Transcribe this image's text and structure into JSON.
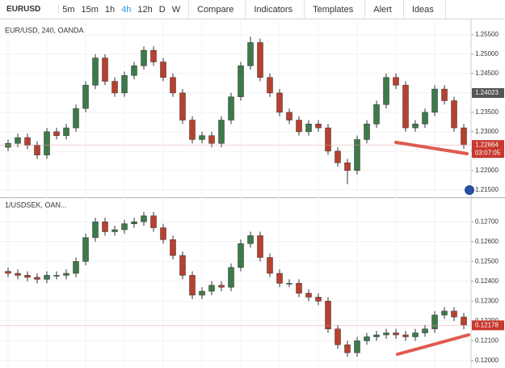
{
  "toolbar": {
    "symbol": "EURUSD",
    "intervals": [
      "5m",
      "15m",
      "1h",
      "4h",
      "12h",
      "D",
      "W"
    ],
    "active_interval": "4h",
    "buttons": [
      "Compare",
      "Indicators",
      "Templates",
      "Alert",
      "Ideas"
    ]
  },
  "chart_data": [
    {
      "type": "candlestick",
      "title": "EUR/USD, 240, OANDA",
      "up_color": "#3d7a4a",
      "down_color": "#b8402f",
      "grid": true,
      "ylim": [
        1.2133,
        1.2577
      ],
      "yticks": [
        {
          "value": 1.255,
          "label": "1.25500"
        },
        {
          "value": 1.25,
          "label": "1.25000"
        },
        {
          "value": 1.245,
          "label": "1.24500"
        },
        {
          "value": 1.24,
          "label": "1.24000"
        },
        {
          "value": 1.235,
          "label": "1.23500"
        },
        {
          "value": 1.23,
          "label": "1.23000"
        },
        {
          "value": 1.225,
          "label": "1.22500"
        },
        {
          "value": 1.22,
          "label": "1.22000"
        },
        {
          "value": 1.215,
          "label": "1.21500"
        }
      ],
      "open": [
        1.226,
        1.227,
        1.2285,
        1.2265,
        1.224,
        1.23,
        1.229,
        1.231,
        1.236,
        1.242,
        1.249,
        1.243,
        1.24,
        1.2445,
        1.247,
        1.251,
        1.248,
        1.244,
        1.24,
        1.233,
        1.228,
        1.229,
        1.227,
        1.233,
        1.239,
        1.247,
        1.253,
        1.244,
        1.24,
        1.235,
        1.233,
        1.23,
        1.232,
        1.231,
        1.225,
        1.222,
        1.22,
        1.228,
        1.232,
        1.237,
        1.244,
        1.242,
        1.231,
        1.232,
        1.235,
        1.241,
        1.238,
        1.231
      ],
      "high": [
        1.228,
        1.2295,
        1.2295,
        1.2275,
        1.231,
        1.231,
        1.232,
        1.237,
        1.243,
        1.25,
        1.25,
        1.244,
        1.2455,
        1.248,
        1.252,
        1.252,
        1.249,
        1.245,
        1.241,
        1.234,
        1.23,
        1.23,
        1.234,
        1.24,
        1.248,
        1.2545,
        1.254,
        1.245,
        1.241,
        1.236,
        1.234,
        1.233,
        1.233,
        1.232,
        1.226,
        1.223,
        1.229,
        1.233,
        1.238,
        1.245,
        1.245,
        1.243,
        1.233,
        1.236,
        1.242,
        1.242,
        1.239,
        1.232
      ],
      "low": [
        1.225,
        1.226,
        1.2255,
        1.223,
        1.223,
        1.228,
        1.228,
        1.23,
        1.235,
        1.241,
        1.242,
        1.239,
        1.239,
        1.2435,
        1.246,
        1.247,
        1.243,
        1.239,
        1.232,
        1.227,
        1.227,
        1.226,
        1.226,
        1.232,
        1.238,
        1.246,
        1.243,
        1.239,
        1.234,
        1.232,
        1.229,
        1.229,
        1.23,
        1.224,
        1.221,
        1.2165,
        1.219,
        1.227,
        1.231,
        1.236,
        1.241,
        1.23,
        1.23,
        1.231,
        1.234,
        1.237,
        1.23,
        1.2256
      ],
      "close": [
        1.227,
        1.2285,
        1.2265,
        1.224,
        1.23,
        1.229,
        1.231,
        1.236,
        1.242,
        1.249,
        1.243,
        1.24,
        1.2445,
        1.247,
        1.251,
        1.248,
        1.244,
        1.24,
        1.233,
        1.228,
        1.229,
        1.227,
        1.233,
        1.239,
        1.247,
        1.253,
        1.244,
        1.24,
        1.235,
        1.233,
        1.23,
        1.232,
        1.231,
        1.225,
        1.222,
        1.22,
        1.228,
        1.232,
        1.237,
        1.244,
        1.242,
        1.231,
        1.232,
        1.235,
        1.241,
        1.238,
        1.231,
        1.2266
      ],
      "last_price_label": "1.22664",
      "countdown": "03:07:05",
      "crosshair_label": "1.24023"
    },
    {
      "type": "candlestick",
      "title": "1/USDSEK, OAN...",
      "up_color": "#3d7a4a",
      "down_color": "#b8402f",
      "grid": true,
      "ylim": [
        0.11963,
        0.12815
      ],
      "yticks": [
        {
          "value": 0.127,
          "label": "0.12700"
        },
        {
          "value": 0.126,
          "label": "0.12600"
        },
        {
          "value": 0.125,
          "label": "0.12500"
        },
        {
          "value": 0.124,
          "label": "0.12400"
        },
        {
          "value": 0.123,
          "label": "0.12300"
        },
        {
          "value": 0.122,
          "label": "0.12200"
        },
        {
          "value": 0.121,
          "label": "0.12100"
        },
        {
          "value": 0.12,
          "label": "0.12000"
        }
      ],
      "open": [
        0.1245,
        0.1244,
        0.1243,
        0.1242,
        0.1241,
        0.1243,
        0.1243,
        0.1244,
        0.125,
        0.1262,
        0.127,
        0.1265,
        0.1266,
        0.1269,
        0.127,
        0.1273,
        0.1267,
        0.1261,
        0.1253,
        0.1243,
        0.1233,
        0.1235,
        0.1238,
        0.1237,
        0.1247,
        0.1259,
        0.1263,
        0.1252,
        0.1244,
        0.1239,
        0.1239,
        0.1234,
        0.1232,
        0.123,
        0.1216,
        0.1208,
        0.1204,
        0.121,
        0.1212,
        0.1213,
        0.1214,
        0.1213,
        0.1212,
        0.1214,
        0.1216,
        0.1223,
        0.1225,
        0.1222
      ],
      "high": [
        0.1247,
        0.1246,
        0.1245,
        0.1244,
        0.1245,
        0.1245,
        0.1246,
        0.1252,
        0.1264,
        0.1272,
        0.1272,
        0.1268,
        0.1271,
        0.1272,
        0.1275,
        0.1275,
        0.1269,
        0.1263,
        0.1255,
        0.1245,
        0.1237,
        0.124,
        0.124,
        0.1249,
        0.1261,
        0.1265,
        0.1265,
        0.1254,
        0.1246,
        0.1241,
        0.1241,
        0.1236,
        0.1234,
        0.1232,
        0.1218,
        0.121,
        0.1212,
        0.1214,
        0.1215,
        0.1216,
        0.1216,
        0.1215,
        0.1216,
        0.1218,
        0.1225,
        0.1227,
        0.1227,
        0.1224
      ],
      "low": [
        0.1242,
        0.1241,
        0.124,
        0.1239,
        0.1239,
        0.1241,
        0.1241,
        0.1242,
        0.1248,
        0.126,
        0.1263,
        0.1263,
        0.1264,
        0.1267,
        0.1268,
        0.1265,
        0.1259,
        0.1251,
        0.1241,
        0.1231,
        0.1231,
        0.1233,
        0.1235,
        0.1235,
        0.1245,
        0.1257,
        0.125,
        0.1242,
        0.1237,
        0.1237,
        0.1232,
        0.123,
        0.1228,
        0.1214,
        0.1206,
        0.1202,
        0.1202,
        0.1208,
        0.121,
        0.1211,
        0.1211,
        0.121,
        0.121,
        0.1212,
        0.1214,
        0.1221,
        0.122,
        0.12158
      ],
      "close": [
        0.1244,
        0.1243,
        0.1242,
        0.1241,
        0.1243,
        0.1243,
        0.1244,
        0.125,
        0.1262,
        0.127,
        0.1265,
        0.1266,
        0.1269,
        0.127,
        0.1273,
        0.1267,
        0.1261,
        0.1253,
        0.1243,
        0.1233,
        0.1235,
        0.1238,
        0.1237,
        0.1247,
        0.1259,
        0.1263,
        0.1252,
        0.1244,
        0.1239,
        0.1239,
        0.1234,
        0.1232,
        0.123,
        0.1216,
        0.1208,
        0.1204,
        0.121,
        0.1212,
        0.1213,
        0.1214,
        0.1213,
        0.1212,
        0.1214,
        0.1216,
        0.1223,
        0.1225,
        0.1222,
        0.12178
      ],
      "last_price_label": "0.12178"
    }
  ]
}
